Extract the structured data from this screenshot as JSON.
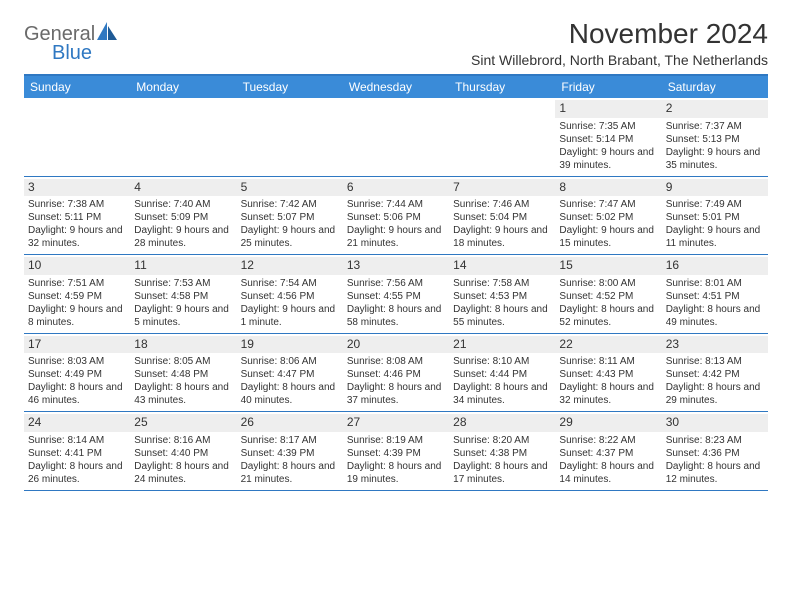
{
  "logo": {
    "general": "General",
    "blue": "Blue"
  },
  "title": "November 2024",
  "subtitle": "Sint Willebrord, North Brabant, The Netherlands",
  "colors": {
    "header_bg": "#3a8bd8",
    "accent": "#2f78c2",
    "daynum_bg": "#eeeeee",
    "text": "#333333",
    "logo_gray": "#6a6a6a",
    "logo_blue": "#2f78c2",
    "background": "#ffffff"
  },
  "day_names": [
    "Sunday",
    "Monday",
    "Tuesday",
    "Wednesday",
    "Thursday",
    "Friday",
    "Saturday"
  ],
  "weeks": [
    [
      null,
      null,
      null,
      null,
      null,
      {
        "day": "1",
        "sunrise": "Sunrise: 7:35 AM",
        "sunset": "Sunset: 5:14 PM",
        "daylight": "Daylight: 9 hours and 39 minutes."
      },
      {
        "day": "2",
        "sunrise": "Sunrise: 7:37 AM",
        "sunset": "Sunset: 5:13 PM",
        "daylight": "Daylight: 9 hours and 35 minutes."
      }
    ],
    [
      {
        "day": "3",
        "sunrise": "Sunrise: 7:38 AM",
        "sunset": "Sunset: 5:11 PM",
        "daylight": "Daylight: 9 hours and 32 minutes."
      },
      {
        "day": "4",
        "sunrise": "Sunrise: 7:40 AM",
        "sunset": "Sunset: 5:09 PM",
        "daylight": "Daylight: 9 hours and 28 minutes."
      },
      {
        "day": "5",
        "sunrise": "Sunrise: 7:42 AM",
        "sunset": "Sunset: 5:07 PM",
        "daylight": "Daylight: 9 hours and 25 minutes."
      },
      {
        "day": "6",
        "sunrise": "Sunrise: 7:44 AM",
        "sunset": "Sunset: 5:06 PM",
        "daylight": "Daylight: 9 hours and 21 minutes."
      },
      {
        "day": "7",
        "sunrise": "Sunrise: 7:46 AM",
        "sunset": "Sunset: 5:04 PM",
        "daylight": "Daylight: 9 hours and 18 minutes."
      },
      {
        "day": "8",
        "sunrise": "Sunrise: 7:47 AM",
        "sunset": "Sunset: 5:02 PM",
        "daylight": "Daylight: 9 hours and 15 minutes."
      },
      {
        "day": "9",
        "sunrise": "Sunrise: 7:49 AM",
        "sunset": "Sunset: 5:01 PM",
        "daylight": "Daylight: 9 hours and 11 minutes."
      }
    ],
    [
      {
        "day": "10",
        "sunrise": "Sunrise: 7:51 AM",
        "sunset": "Sunset: 4:59 PM",
        "daylight": "Daylight: 9 hours and 8 minutes."
      },
      {
        "day": "11",
        "sunrise": "Sunrise: 7:53 AM",
        "sunset": "Sunset: 4:58 PM",
        "daylight": "Daylight: 9 hours and 5 minutes."
      },
      {
        "day": "12",
        "sunrise": "Sunrise: 7:54 AM",
        "sunset": "Sunset: 4:56 PM",
        "daylight": "Daylight: 9 hours and 1 minute."
      },
      {
        "day": "13",
        "sunrise": "Sunrise: 7:56 AM",
        "sunset": "Sunset: 4:55 PM",
        "daylight": "Daylight: 8 hours and 58 minutes."
      },
      {
        "day": "14",
        "sunrise": "Sunrise: 7:58 AM",
        "sunset": "Sunset: 4:53 PM",
        "daylight": "Daylight: 8 hours and 55 minutes."
      },
      {
        "day": "15",
        "sunrise": "Sunrise: 8:00 AM",
        "sunset": "Sunset: 4:52 PM",
        "daylight": "Daylight: 8 hours and 52 minutes."
      },
      {
        "day": "16",
        "sunrise": "Sunrise: 8:01 AM",
        "sunset": "Sunset: 4:51 PM",
        "daylight": "Daylight: 8 hours and 49 minutes."
      }
    ],
    [
      {
        "day": "17",
        "sunrise": "Sunrise: 8:03 AM",
        "sunset": "Sunset: 4:49 PM",
        "daylight": "Daylight: 8 hours and 46 minutes."
      },
      {
        "day": "18",
        "sunrise": "Sunrise: 8:05 AM",
        "sunset": "Sunset: 4:48 PM",
        "daylight": "Daylight: 8 hours and 43 minutes."
      },
      {
        "day": "19",
        "sunrise": "Sunrise: 8:06 AM",
        "sunset": "Sunset: 4:47 PM",
        "daylight": "Daylight: 8 hours and 40 minutes."
      },
      {
        "day": "20",
        "sunrise": "Sunrise: 8:08 AM",
        "sunset": "Sunset: 4:46 PM",
        "daylight": "Daylight: 8 hours and 37 minutes."
      },
      {
        "day": "21",
        "sunrise": "Sunrise: 8:10 AM",
        "sunset": "Sunset: 4:44 PM",
        "daylight": "Daylight: 8 hours and 34 minutes."
      },
      {
        "day": "22",
        "sunrise": "Sunrise: 8:11 AM",
        "sunset": "Sunset: 4:43 PM",
        "daylight": "Daylight: 8 hours and 32 minutes."
      },
      {
        "day": "23",
        "sunrise": "Sunrise: 8:13 AM",
        "sunset": "Sunset: 4:42 PM",
        "daylight": "Daylight: 8 hours and 29 minutes."
      }
    ],
    [
      {
        "day": "24",
        "sunrise": "Sunrise: 8:14 AM",
        "sunset": "Sunset: 4:41 PM",
        "daylight": "Daylight: 8 hours and 26 minutes."
      },
      {
        "day": "25",
        "sunrise": "Sunrise: 8:16 AM",
        "sunset": "Sunset: 4:40 PM",
        "daylight": "Daylight: 8 hours and 24 minutes."
      },
      {
        "day": "26",
        "sunrise": "Sunrise: 8:17 AM",
        "sunset": "Sunset: 4:39 PM",
        "daylight": "Daylight: 8 hours and 21 minutes."
      },
      {
        "day": "27",
        "sunrise": "Sunrise: 8:19 AM",
        "sunset": "Sunset: 4:39 PM",
        "daylight": "Daylight: 8 hours and 19 minutes."
      },
      {
        "day": "28",
        "sunrise": "Sunrise: 8:20 AM",
        "sunset": "Sunset: 4:38 PM",
        "daylight": "Daylight: 8 hours and 17 minutes."
      },
      {
        "day": "29",
        "sunrise": "Sunrise: 8:22 AM",
        "sunset": "Sunset: 4:37 PM",
        "daylight": "Daylight: 8 hours and 14 minutes."
      },
      {
        "day": "30",
        "sunrise": "Sunrise: 8:23 AM",
        "sunset": "Sunset: 4:36 PM",
        "daylight": "Daylight: 8 hours and 12 minutes."
      }
    ]
  ]
}
